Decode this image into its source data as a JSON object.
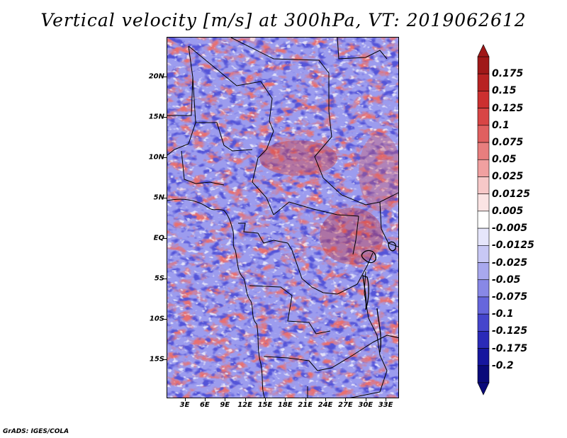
{
  "title": "Vertical velocity [m/s] at 300hPa, VT: 2019062612",
  "credit": "GrADS: IGES/COLA",
  "map": {
    "lat_labels": [
      "20N",
      "15N",
      "10N",
      "5N",
      "EQ",
      "5S",
      "10S",
      "15S"
    ],
    "lat_values": [
      20,
      15,
      10,
      5,
      0,
      -5,
      -10,
      -15
    ],
    "lon_labels": [
      "3E",
      "6E",
      "9E",
      "12E",
      "15E",
      "18E",
      "21E",
      "24E",
      "27E",
      "30E",
      "33E"
    ],
    "lon_values": [
      3,
      6,
      9,
      12,
      15,
      18,
      21,
      24,
      27,
      30,
      33
    ],
    "lon_range": [
      0.3,
      35
    ],
    "lat_range": [
      -19.8,
      24.9
    ]
  },
  "colorbar": {
    "labels": [
      "0.175",
      "0.15",
      "0.125",
      "0.1",
      "0.075",
      "0.05",
      "0.025",
      "0.0125",
      "0.005",
      "-0.005",
      "-0.0125",
      "-0.025",
      "-0.05",
      "-0.075",
      "-0.1",
      "-0.125",
      "-0.175",
      "-0.2"
    ],
    "colors": [
      "#a01818",
      "#b82222",
      "#cc3030",
      "#d84545",
      "#e06060",
      "#e87e7e",
      "#f0a0a0",
      "#f7c8c8",
      "#fbe4e4",
      "#ffffff",
      "#e6e6fb",
      "#c8c8f5",
      "#a8a8ee",
      "#8888e6",
      "#6666dc",
      "#4545cc",
      "#2a2ab8",
      "#16169e",
      "#0a0a7a"
    ],
    "top_color": "#a01818",
    "bottom_color": "#0a0a7a"
  },
  "field_colors": {
    "blue": "#8080e8",
    "light_blue": "#c0c0f4",
    "red": "#e06060",
    "light_red": "#f4b8b8"
  }
}
